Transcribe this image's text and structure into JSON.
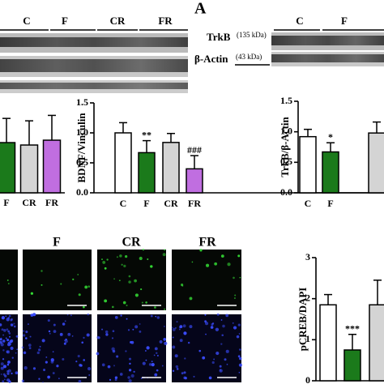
{
  "panel_label": "A",
  "blots": {
    "left": {
      "lanes": [
        "C",
        "F",
        "CR",
        "FR"
      ]
    },
    "right": {
      "lanes": [
        "C",
        "F"
      ],
      "rows": [
        {
          "protein": "TrkB",
          "size": "(135 kDa)"
        },
        {
          "protein": "β-Actin",
          "size": "(43 kDa)"
        }
      ]
    }
  },
  "micrographs": {
    "columns": [
      "F",
      "CR",
      "FR"
    ]
  },
  "chart_data": [
    {
      "type": "bar",
      "categories": [
        "F",
        "CR",
        "FR"
      ],
      "values": [
        0.83,
        0.79,
        0.87
      ],
      "errors": [
        0.4,
        0.4,
        0.41
      ],
      "colors": [
        "#1b7a1b",
        "#d4d4d4",
        "#c06ee0"
      ],
      "ylim": [
        0,
        1.5
      ]
    },
    {
      "type": "bar",
      "ylabel": "BDNF/Vinculin",
      "categories": [
        "C",
        "F",
        "CR",
        "FR"
      ],
      "values": [
        1.0,
        0.67,
        0.84,
        0.4
      ],
      "errors": [
        0.17,
        0.2,
        0.15,
        0.22
      ],
      "value_annotations": [
        null,
        "**",
        null,
        "###"
      ],
      "colors": [
        "#ffffff",
        "#1b7a1b",
        "#d4d4d4",
        "#c06ee0"
      ],
      "ylim": [
        0,
        1.5
      ],
      "yticks": [
        {
          "value": 0,
          "label": "0.0"
        },
        {
          "value": 0.5,
          "label": "0.5"
        },
        {
          "value": 1,
          "label": "1.0"
        },
        {
          "value": 1.5,
          "label": "1.5"
        }
      ]
    },
    {
      "type": "bar",
      "ylabel": "TrkB/β-Actin",
      "categories": [
        "C",
        "F",
        null
      ],
      "values": [
        0.92,
        0.67,
        0.98
      ],
      "errors": [
        0.12,
        0.15,
        0.18
      ],
      "value_annotations": [
        null,
        "*",
        null
      ],
      "colors": [
        "#ffffff",
        "#1b7a1b",
        "#d4d4d4"
      ],
      "ylim": [
        0,
        1.5
      ],
      "yticks": [
        {
          "value": 0,
          "label": "0.0"
        },
        {
          "value": 0.5,
          "label": "0.5"
        },
        {
          "value": 1,
          "label": "1.0"
        },
        {
          "value": 1.5,
          "label": "1.5"
        }
      ]
    },
    {
      "type": "bar",
      "ylabel": "pCREB/DAPI",
      "categories": [
        null,
        null,
        null
      ],
      "values": [
        1.85,
        0.75,
        1.85
      ],
      "errors": [
        0.25,
        0.38,
        0.6
      ],
      "value_annotations": [
        null,
        "***",
        null
      ],
      "colors": [
        "#ffffff",
        "#1b7a1b",
        "#d4d4d4"
      ],
      "ylim": [
        0,
        3
      ],
      "yticks": [
        0,
        1,
        2,
        3
      ]
    }
  ]
}
